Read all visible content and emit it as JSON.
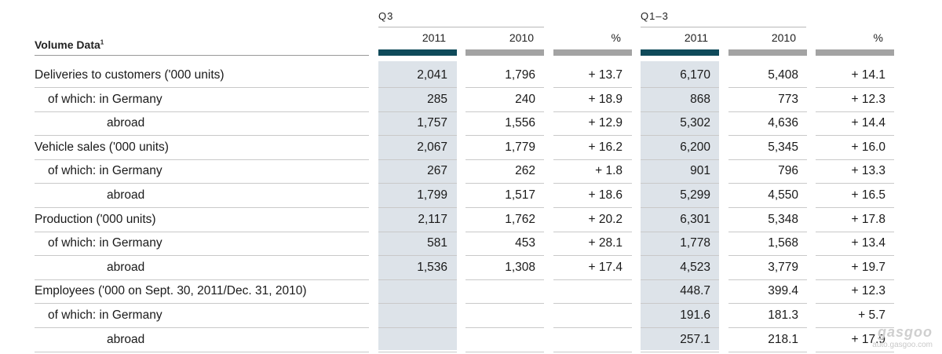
{
  "header": {
    "title": "Volume Data",
    "title_footnote": "1",
    "group_q3": "Q3",
    "group_q13": "Q1–3",
    "columns": [
      "2011",
      "2010",
      "%",
      "2011",
      "2010",
      "%"
    ]
  },
  "colors": {
    "accent_bar": "#0f4a5a",
    "secondary_bar": "#a3a3a3",
    "shaded_column": "#dde3e9"
  },
  "rows": [
    {
      "label": "Deliveries to customers ('000 units)",
      "level": 0,
      "values": [
        "2,041",
        "1,796",
        "+ 13.7",
        "6,170",
        "5,408",
        "+ 14.1"
      ]
    },
    {
      "label": "of which: in Germany",
      "level": 1,
      "values": [
        "285",
        "240",
        "+ 18.9",
        "868",
        "773",
        "+ 12.3"
      ]
    },
    {
      "label": "abroad",
      "level": 2,
      "values": [
        "1,757",
        "1,556",
        "+ 12.9",
        "5,302",
        "4,636",
        "+ 14.4"
      ]
    },
    {
      "label": "Vehicle sales ('000 units)",
      "level": 0,
      "values": [
        "2,067",
        "1,779",
        "+ 16.2",
        "6,200",
        "5,345",
        "+ 16.0"
      ]
    },
    {
      "label": "of which: in Germany",
      "level": 1,
      "values": [
        "267",
        "262",
        "+ 1.8",
        "901",
        "796",
        "+ 13.3"
      ]
    },
    {
      "label": "abroad",
      "level": 2,
      "values": [
        "1,799",
        "1,517",
        "+ 18.6",
        "5,299",
        "4,550",
        "+ 16.5"
      ]
    },
    {
      "label": "Production ('000 units)",
      "level": 0,
      "values": [
        "2,117",
        "1,762",
        "+ 20.2",
        "6,301",
        "5,348",
        "+ 17.8"
      ]
    },
    {
      "label": "of which: in Germany",
      "level": 1,
      "values": [
        "581",
        "453",
        "+ 28.1",
        "1,778",
        "1,568",
        "+ 13.4"
      ]
    },
    {
      "label": "abroad",
      "level": 2,
      "values": [
        "1,536",
        "1,308",
        "+ 17.4",
        "4,523",
        "3,779",
        "+ 19.7"
      ]
    },
    {
      "label": "Employees ('000 on Sept. 30, 2011/Dec. 31, 2010)",
      "level": 0,
      "values": [
        "",
        "",
        "",
        "448.7",
        "399.4",
        "+ 12.3"
      ]
    },
    {
      "label": "of which: in Germany",
      "level": 1,
      "values": [
        "",
        "",
        "",
        "191.6",
        "181.3",
        "+ 5.7"
      ]
    },
    {
      "label": "abroad",
      "level": 2,
      "values": [
        "",
        "",
        "",
        "257.1",
        "218.1",
        "+ 17.9"
      ]
    }
  ],
  "watermark": {
    "brand": "gasgoo",
    "url": "auto.gasgoo.com"
  }
}
